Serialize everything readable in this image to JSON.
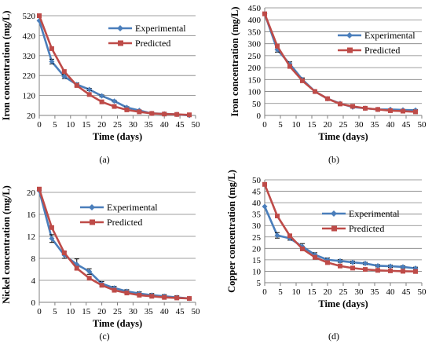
{
  "chart_data": [
    {
      "panel": "(a)",
      "type": "line",
      "xlabel": "Time (days)",
      "ylabel": "Iron concentration (mg/L)",
      "xlim": [
        0,
        50
      ],
      "xticks": [
        0,
        5,
        10,
        15,
        20,
        25,
        30,
        35,
        40,
        45,
        50
      ],
      "ylim": [
        20,
        520
      ],
      "yticks": [
        20,
        120,
        220,
        320,
        420,
        520
      ],
      "grid": true,
      "legend": "top-right",
      "x": [
        0,
        4,
        8,
        12,
        16,
        20,
        24,
        28,
        32,
        36,
        40,
        44,
        48
      ],
      "series": [
        {
          "name": "Experimental",
          "color": "#4a7ebb",
          "marker": "diamond",
          "values": [
            495,
            290,
            215,
            175,
            150,
            118,
            92,
            60,
            45,
            30,
            28,
            25,
            20
          ],
          "error": [
            0,
            12,
            10,
            8,
            6,
            5,
            4,
            4,
            3,
            3,
            3,
            3,
            3
          ]
        },
        {
          "name": "Predicted",
          "color": "#be4b48",
          "marker": "square",
          "values": [
            520,
            355,
            240,
            170,
            125,
            88,
            65,
            48,
            38,
            30,
            27,
            25,
            23
          ]
        }
      ]
    },
    {
      "panel": "(b)",
      "type": "line",
      "xlabel": "Time (days)",
      "ylabel": "Iron concentration (mg/L)",
      "xlim": [
        0,
        50
      ],
      "xticks": [
        0,
        5,
        10,
        15,
        20,
        25,
        30,
        35,
        40,
        45,
        50
      ],
      "ylim": [
        0,
        450
      ],
      "yticks": [
        0,
        50,
        100,
        150,
        200,
        250,
        300,
        350,
        400,
        450
      ],
      "grid": true,
      "legend": "top-right",
      "x": [
        0,
        4,
        8,
        12,
        16,
        20,
        24,
        28,
        32,
        36,
        40,
        44,
        48
      ],
      "series": [
        {
          "name": "Experimental",
          "color": "#4a7ebb",
          "marker": "diamond",
          "values": [
            425,
            275,
            215,
            150,
            100,
            70,
            50,
            35,
            30,
            25,
            25,
            23,
            22
          ],
          "error": [
            0,
            10,
            9,
            7,
            5,
            4,
            4,
            3,
            3,
            3,
            3,
            3,
            3
          ]
        },
        {
          "name": "Predicted",
          "color": "#be4b48",
          "marker": "square",
          "values": [
            425,
            290,
            205,
            145,
            100,
            70,
            48,
            38,
            30,
            25,
            20,
            18,
            15
          ]
        }
      ]
    },
    {
      "panel": "(c)",
      "type": "line",
      "xlabel": "Time (days)",
      "ylabel": "Nickel concentration (mg/L)",
      "xlim": [
        0,
        50
      ],
      "xticks": [
        0,
        5,
        10,
        15,
        20,
        25,
        30,
        35,
        40,
        45,
        50
      ],
      "ylim": [
        0,
        21
      ],
      "yticks": [
        0,
        4,
        8,
        12,
        16,
        20
      ],
      "grid": true,
      "legend": "top-right",
      "x": [
        0,
        4,
        8,
        12,
        16,
        20,
        24,
        28,
        32,
        36,
        40,
        44,
        48
      ],
      "series": [
        {
          "name": "Experimental",
          "color": "#4a7ebb",
          "marker": "diamond",
          "values": [
            20.3,
            11.6,
            8.6,
            6.9,
            5.6,
            3.4,
            2.6,
            2.0,
            1.6,
            1.3,
            1.1,
            0.9,
            0.7
          ],
          "error": [
            0,
            0.7,
            0.6,
            1.0,
            0.5,
            0.4,
            0.3,
            0.3,
            0.3,
            0.3,
            0.3,
            0.3,
            0.3
          ]
        },
        {
          "name": "Predicted",
          "color": "#be4b48",
          "marker": "square",
          "values": [
            20.6,
            13.6,
            9.0,
            6.2,
            4.4,
            3.1,
            2.2,
            1.7,
            1.3,
            1.1,
            0.9,
            0.8,
            0.7
          ]
        }
      ]
    },
    {
      "panel": "(d)",
      "type": "line",
      "xlabel": "Time (days)",
      "ylabel": "Copper concentration (mg/L)",
      "xlim": [
        0,
        50
      ],
      "xticks": [
        0,
        5,
        10,
        15,
        20,
        25,
        30,
        35,
        40,
        45,
        50
      ],
      "ylim": [
        5,
        50
      ],
      "yticks": [
        5,
        10,
        15,
        20,
        25,
        30,
        35,
        40,
        45,
        50
      ],
      "grid": true,
      "legend": "top-right",
      "x": [
        0,
        4,
        8,
        12,
        16,
        20,
        24,
        28,
        32,
        36,
        40,
        44,
        48
      ],
      "series": [
        {
          "name": "Experimental",
          "color": "#4a7ebb",
          "marker": "diamond",
          "values": [
            38.3,
            25.7,
            24.4,
            20.8,
            17.2,
            15.0,
            14.5,
            13.9,
            13.4,
            12.4,
            12.2,
            11.9,
            11.3
          ],
          "error": [
            0,
            1.2,
            0.8,
            1.3,
            0.9,
            0.8,
            0.6,
            0.5,
            0.5,
            0.5,
            0.5,
            0.5,
            0.5
          ]
        },
        {
          "name": "Predicted",
          "color": "#be4b48",
          "marker": "square",
          "values": [
            48.0,
            34.2,
            25.5,
            19.8,
            16.1,
            13.8,
            12.3,
            11.4,
            10.8,
            10.4,
            10.2,
            10.0,
            9.9
          ]
        }
      ]
    }
  ]
}
